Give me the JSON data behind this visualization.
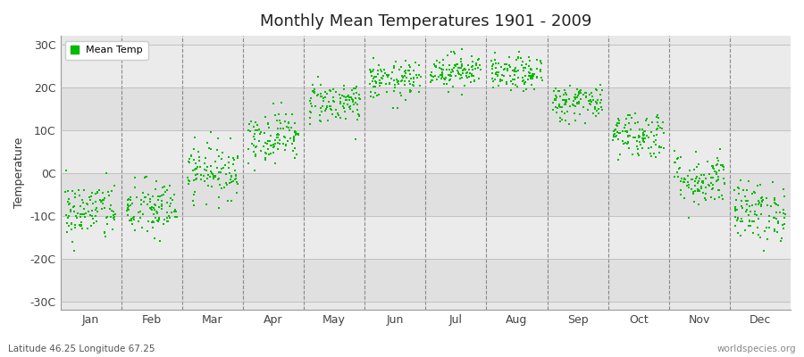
{
  "title": "Monthly Mean Temperatures 1901 - 2009",
  "ylabel": "Temperature",
  "xlabel_labels": [
    "Jan",
    "Feb",
    "Mar",
    "Apr",
    "May",
    "Jun",
    "Jul",
    "Aug",
    "Sep",
    "Oct",
    "Nov",
    "Dec"
  ],
  "ytick_labels": [
    "30C",
    "20C",
    "10C",
    "0C",
    "-10C",
    "-20C",
    "-30C"
  ],
  "ytick_values": [
    30,
    20,
    10,
    0,
    -10,
    -20,
    -30
  ],
  "ylim": [
    -32,
    32
  ],
  "legend_label": "Mean Temp",
  "dot_color": "#00bb00",
  "plot_bg_color": "#e8e8e8",
  "stripe_colors": [
    "#e0e0e0",
    "#ebebeb"
  ],
  "subtitle": "Latitude 46.25 Longitude 67.25",
  "watermark": "worldspecies.org",
  "monthly_mean_temps": {
    "Jan": -9.0,
    "Feb": -8.5,
    "Mar": 0.5,
    "Apr": 8.5,
    "May": 16.5,
    "Jun": 21.5,
    "Jul": 24.0,
    "Aug": 23.0,
    "Sep": 16.5,
    "Oct": 9.0,
    "Nov": -1.5,
    "Dec": -9.0
  },
  "monthly_std": {
    "Jan": 3.5,
    "Feb": 3.5,
    "Mar": 3.2,
    "Apr": 3.0,
    "May": 2.5,
    "Jun": 2.2,
    "Jul": 2.0,
    "Aug": 2.0,
    "Sep": 2.2,
    "Oct": 2.8,
    "Nov": 3.2,
    "Dec": 3.5
  },
  "n_years": 109,
  "seed": 42
}
